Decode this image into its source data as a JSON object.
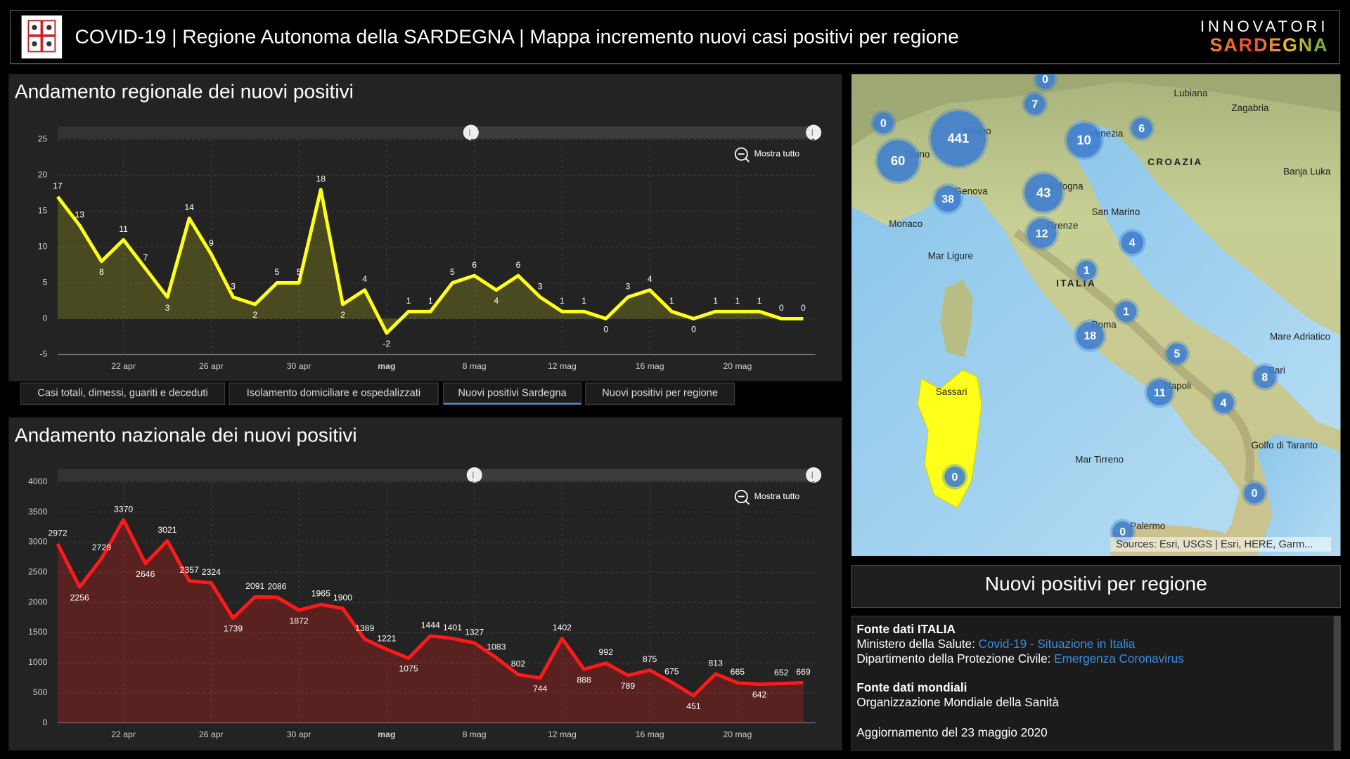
{
  "header": {
    "title": "COVID-19 | Regione Autonoma della SARDEGNA | Mappa incremento nuovi casi positivi per regione",
    "brand_top": "INNOVATORI",
    "brand_bottom": "SARDEGNA"
  },
  "chart_data": [
    {
      "type": "line",
      "title": "Andamento regionale dei nuovi positivi",
      "reset_button": "Mostra tutto",
      "categories": [
        null,
        null,
        null,
        "22 apr",
        null,
        null,
        null,
        "26 apr",
        null,
        null,
        null,
        "30 apr",
        null,
        null,
        null,
        "mag",
        null,
        null,
        null,
        "8 mag",
        null,
        null,
        null,
        "12 mag",
        null,
        null,
        null,
        "16 mag",
        null,
        null,
        null,
        "20 mag",
        null,
        null,
        null
      ],
      "values": [
        17,
        13,
        8,
        11,
        7,
        3,
        14,
        9,
        3,
        2,
        5,
        5,
        18,
        2,
        4,
        -2,
        1,
        1,
        5,
        6,
        4,
        6,
        3,
        1,
        1,
        0,
        3,
        4,
        1,
        0,
        1,
        1,
        1,
        0,
        0
      ],
      "color": "#ffff1a",
      "ylim": [
        -5,
        25
      ],
      "yticks": [
        -5,
        0,
        5,
        10,
        15,
        20,
        25
      ],
      "grid": true
    },
    {
      "type": "line",
      "title": "Andamento nazionale dei nuovi positivi",
      "reset_button": "Mostra tutto",
      "categories": [
        null,
        null,
        null,
        "22 apr",
        null,
        null,
        null,
        "26 apr",
        null,
        null,
        null,
        "30 apr",
        null,
        null,
        null,
        "mag",
        null,
        null,
        null,
        "8 mag",
        null,
        null,
        null,
        "12 mag",
        null,
        null,
        null,
        "16 mag",
        null,
        null,
        null,
        "20 mag",
        null,
        null,
        null
      ],
      "values": [
        2972,
        2256,
        2729,
        3370,
        2646,
        3021,
        2357,
        2324,
        1739,
        2091,
        2086,
        1872,
        1965,
        1900,
        1389,
        1221,
        1075,
        1444,
        1401,
        1327,
        1083,
        802,
        744,
        1402,
        888,
        992,
        789,
        875,
        675,
        451,
        813,
        665,
        642,
        652,
        669
      ],
      "color": "#ff1a1a",
      "ylim": [
        0,
        4000
      ],
      "yticks": [
        0,
        500,
        1000,
        1500,
        2000,
        2500,
        3000,
        3500,
        4000
      ],
      "grid": true
    }
  ],
  "tabs": [
    "Casi totali, dimessi, guariti e deceduti",
    "Isolamento domiciliare e ospedalizzati",
    "Nuovi positivi Sardegna",
    "Nuovi positivi per regione"
  ],
  "map": {
    "clusters": [
      0,
      7,
      0,
      441,
      10,
      6,
      60,
      38,
      43,
      12,
      4,
      1,
      1,
      18,
      5,
      8,
      11,
      4,
      0,
      0,
      0
    ],
    "places": [
      "Lubiana",
      "Zagabria",
      "CROAZIA",
      "Banja Luka",
      "Venezia",
      "Milano",
      "Torino",
      "Genova",
      "Bologna",
      "Monaco",
      "Firenze",
      "San Marino",
      "ITALIA",
      "Mar Ligure",
      "Roma",
      "Mare Adriatico",
      "Napoli",
      "Bari",
      "Mar Tirreno",
      "Palermo",
      "Golfo di Taranto",
      "Sassari"
    ],
    "sources": "Sources: Esri, USGS | Esri, HERE, Garm..."
  },
  "legend_title": "Nuovi positivi per regione",
  "info": {
    "heading_italy": "Fonte dati ITALIA",
    "ministry": "Ministero della Salute:",
    "ministry_link": "Covid-19 - Situazione in Italia",
    "protezione": "Dipartimento della Protezione Civile:",
    "protezione_link": "Emergenza Coronavirus",
    "heading_world": "Fonte dati mondiali",
    "oms": "Organizzazione Mondiale della Sanità",
    "update": "Aggiornamento del 23 maggio 2020"
  }
}
